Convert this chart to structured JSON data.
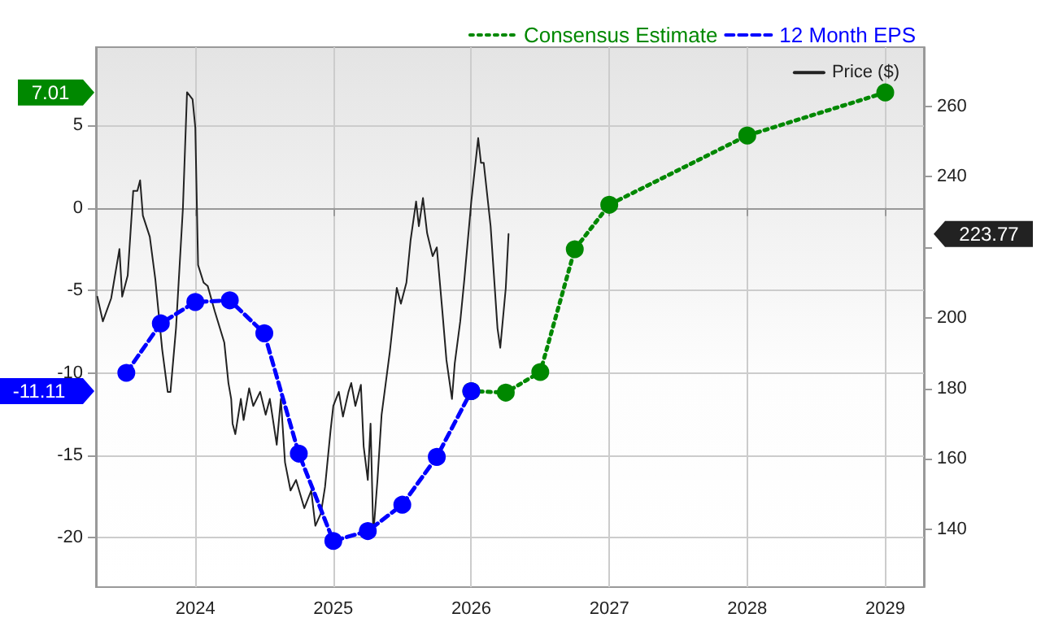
{
  "chart_data": {
    "type": "line",
    "series": [
      {
        "name": "Consensus Estimate",
        "color": "#008800",
        "line_style": "dotted",
        "marker": "circle",
        "x": [
          2026.0,
          2026.25,
          2026.5,
          2026.75,
          2027.0,
          2028.0,
          2029.0
        ],
        "values": [
          -11.11,
          -11.2,
          -9.95,
          -2.5,
          0.2,
          4.4,
          7.01
        ]
      },
      {
        "name": "12 Month EPS",
        "color": "#0000ff",
        "line_style": "dashed",
        "marker": "circle",
        "x": [
          2023.5,
          2023.75,
          2024.0,
          2024.25,
          2024.5,
          2024.75,
          2025.0,
          2025.25,
          2025.5,
          2025.75,
          2026.0
        ],
        "values": [
          -10.0,
          -7.0,
          -5.7,
          -5.6,
          -7.6,
          -14.9,
          -20.2,
          -19.6,
          -18.0,
          -15.1,
          -11.11
        ]
      },
      {
        "name": "Price ($)",
        "color": "#222222",
        "line_style": "solid",
        "marker": "none",
        "axis": "y2",
        "x": [
          2023.29,
          2023.33,
          2023.39,
          2023.45,
          2023.47,
          2023.51,
          2023.55,
          2023.58,
          2023.6,
          2023.62,
          2023.67,
          2023.71,
          2023.76,
          2023.8,
          2023.82,
          2023.86,
          2023.91,
          2023.94,
          2023.98,
          2024.0,
          2024.02,
          2024.06,
          2024.09,
          2024.14,
          2024.21,
          2024.24,
          2024.26,
          2024.27,
          2024.29,
          2024.33,
          2024.35,
          2024.39,
          2024.42,
          2024.47,
          2024.51,
          2024.54,
          2024.59,
          2024.62,
          2024.65,
          2024.69,
          2024.73,
          2024.79,
          2024.84,
          2024.87,
          2024.91,
          2024.94,
          2024.98,
          2025.0,
          2025.04,
          2025.07,
          2025.11,
          2025.13,
          2025.16,
          2025.2,
          2025.22,
          2025.25,
          2025.27,
          2025.29,
          2025.32,
          2025.35,
          2025.41,
          2025.46,
          2025.49,
          2025.53,
          2025.56,
          2025.6,
          2025.62,
          2025.65,
          2025.68,
          2025.72,
          2025.75,
          2025.79,
          2025.82,
          2025.86,
          2025.88,
          2025.92,
          2025.95,
          2026.0,
          2026.05,
          2026.07,
          2026.09,
          2026.14,
          2026.19,
          2026.21,
          2026.25,
          2026.27
        ],
        "values": [
          206,
          199,
          205.5,
          219.5,
          206,
          212,
          236,
          236,
          239,
          229,
          223,
          211,
          191,
          179,
          179,
          197,
          231,
          264,
          262,
          254,
          215,
          210,
          209,
          202,
          193,
          181.5,
          177,
          170,
          167,
          177,
          171,
          180,
          175,
          179,
          172.5,
          177,
          164,
          177,
          159,
          151,
          154,
          146,
          151,
          141,
          144.5,
          152,
          168,
          175,
          179,
          172,
          179,
          181.5,
          175,
          181,
          163.5,
          154,
          170,
          138.5,
          154,
          172.5,
          190.5,
          208.5,
          204,
          210,
          222,
          233,
          226,
          234,
          224,
          217.5,
          220,
          202,
          188,
          177,
          187,
          199,
          211,
          233,
          251,
          244,
          244,
          226,
          197,
          191.5,
          208.5,
          223.77
        ]
      }
    ],
    "xlim": [
      2023.28,
      2029.28
    ],
    "xticks": [
      2024,
      2025,
      2026,
      2027,
      2028,
      2029
    ],
    "ylim": [
      -23,
      9.76
    ],
    "yticks": [
      -20,
      -15,
      -10,
      -5,
      0,
      5
    ],
    "y2lim": [
      123.6,
      276.8
    ],
    "y2ticks": [
      140,
      160,
      180,
      200,
      {
        "value": 220,
        "label": null
      },
      240,
      260
    ],
    "annotations": [
      "7.01",
      "-11.11",
      "223.77"
    ],
    "grid": true,
    "legend": "top right"
  }
}
